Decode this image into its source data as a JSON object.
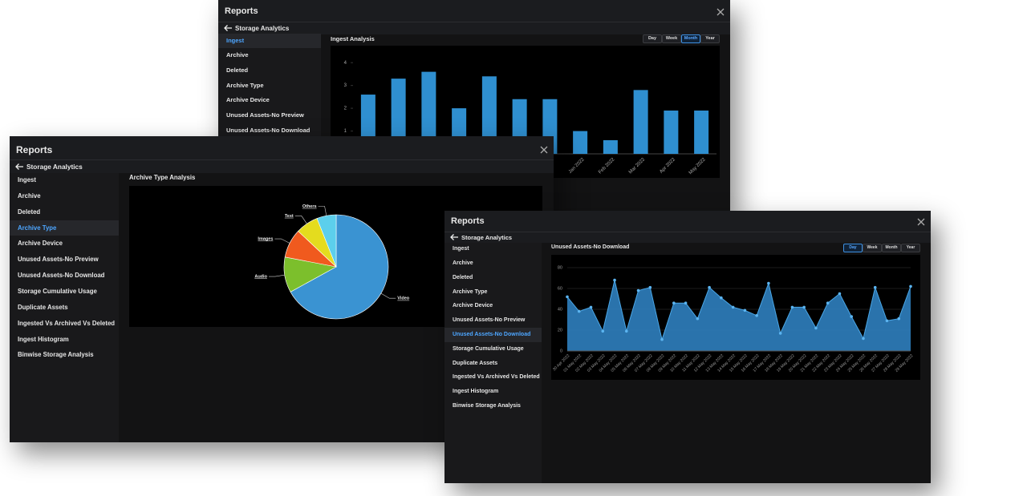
{
  "windows": [
    {
      "title": "Reports",
      "back": "Storage Analytics",
      "menu": [
        "Ingest",
        "Archive",
        "Deleted",
        "Archive Type",
        "Archive Device",
        "Unused Assets-No Preview",
        "Unused Assets-No Download"
      ],
      "active_item": 0,
      "buttons": [
        "Day",
        "Week",
        "Month",
        "Year"
      ],
      "active_button": 2
    },
    {
      "title": "Reports",
      "back": "Storage Analytics",
      "menu": [
        "Ingest",
        "Archive",
        "Deleted",
        "Archive Type",
        "Archive Device",
        "Unused Assets-No Preview",
        "Unused Assets-No Download",
        "Storage Cumulative Usage",
        "Duplicate Assets",
        "Ingested Vs Archived Vs Deleted",
        "Ingest Histogram",
        "Binwise Storage Analysis"
      ],
      "active_item": 3
    },
    {
      "title": "Reports",
      "back": "Storage Analytics",
      "menu": [
        "Ingest",
        "Archive",
        "Deleted",
        "Archive Type",
        "Archive Device",
        "Unused Assets-No Preview",
        "Unused Assets-No Download",
        "Storage Cumulative Usage",
        "Duplicate Assets",
        "Ingested Vs Archived Vs Deleted",
        "Ingest Histogram",
        "Binwise Storage Analysis"
      ],
      "active_item": 6,
      "buttons": [
        "Day",
        "Week",
        "Month",
        "Year"
      ],
      "active_button": 0
    }
  ],
  "chart_data": [
    {
      "type": "bar",
      "title": "Ingest Analysis",
      "categories": [
        null,
        null,
        null,
        null,
        null,
        null,
        null,
        "Jan 2022",
        "Feb 2022",
        "Mar 2022",
        "Apr 2022",
        "May 2022"
      ],
      "values": [
        2.6,
        3.3,
        3.6,
        2.0,
        3.4,
        2.4,
        2.4,
        1.0,
        0.6,
        2.8,
        1.9,
        1.9
      ],
      "color": "#2f8fd0",
      "ylim": [
        0,
        4.5
      ],
      "yticks": [
        1,
        2,
        3,
        4
      ],
      "grid": false
    },
    {
      "type": "pie",
      "title": "Archive Type Analysis",
      "categories": [
        "Video",
        "Audio",
        "Images",
        "Text",
        "Others"
      ],
      "values": [
        67,
        11,
        9,
        7,
        6
      ],
      "colors": [
        "#3a93d2",
        "#7cbf2c",
        "#f05a1e",
        "#e4dc1e",
        "#5ccfec"
      ]
    },
    {
      "type": "area",
      "title": "Unused Assets-No Download",
      "x": [
        "30 Apr 2022",
        "01 May 2022",
        "02 May 2022",
        "03 May 2022",
        "04 May 2022",
        "05 May 2022",
        "06 May 2022",
        "07 May 2022",
        "08 May 2022",
        "09 May 2022",
        "10 May 2022",
        "11 May 2022",
        "12 May 2022",
        "13 May 2022",
        "14 May 2022",
        "15 May 2022",
        "16 May 2022",
        "17 May 2022",
        "18 May 2022",
        "19 May 2022",
        "20 May 2022",
        "21 May 2022",
        "22 May 2022",
        "23 May 2022",
        "24 May 2022",
        "25 May 2022",
        "26 May 2022",
        "27 May 2022",
        "28 May 2022",
        "29 May 2022"
      ],
      "values": [
        52,
        38,
        42,
        19,
        68,
        19,
        58,
        61,
        11,
        46,
        46,
        31,
        61,
        51,
        42,
        39,
        34,
        65,
        17,
        42,
        42,
        22,
        46,
        55,
        33,
        12,
        61,
        29,
        31,
        62
      ],
      "color": "#2f7fbf",
      "ylim": [
        0,
        80
      ],
      "yticks": [
        0,
        20,
        40,
        60,
        80
      ],
      "grid": true
    }
  ]
}
